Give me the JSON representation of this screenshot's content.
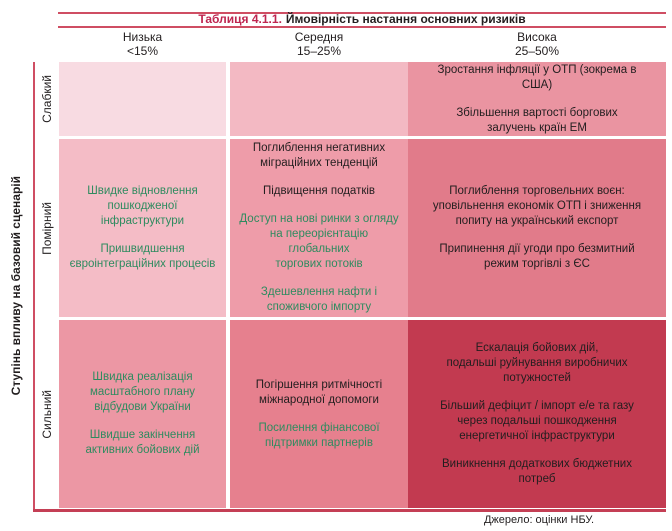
{
  "title": {
    "prefix": "Таблиця 4.1.1.",
    "main": "Ймовірність настання основних ризиків"
  },
  "probability_axis": {
    "columns": [
      {
        "label": "Низька",
        "range": "<15%"
      },
      {
        "label": "Середня",
        "range": "15–25%"
      },
      {
        "label": "Висока",
        "range": "25–50%"
      }
    ]
  },
  "impact_axis": {
    "title": "Ступінь впливу на базовий сценарій",
    "rows": [
      "Слабкий",
      "Помірний",
      "Сильний"
    ]
  },
  "matrix": {
    "rows": [
      {
        "cells": [
          {
            "bg": "#f8dbe2",
            "items": []
          },
          {
            "bg": "#f3b9c3",
            "items": []
          },
          {
            "bg": "#ea94a1",
            "items": [
              {
                "text": "Зростання інфляції у ОТП (зокрема в\nСША)",
                "tone": "negative"
              },
              {
                "text": "Збільшення вартості боргових\nзалучень країн ЕМ",
                "tone": "negative"
              }
            ]
          }
        ]
      },
      {
        "cells": [
          {
            "bg": "#f4bcc6",
            "items": [
              {
                "text": "Швидке відновлення\nпошкодженої\nінфраструктури",
                "tone": "positive"
              },
              {
                "text": "Пришвидшення\nєвроінтеграційних процесів",
                "tone": "positive"
              }
            ]
          },
          {
            "bg": "#ee9ca9",
            "items": [
              {
                "text": "Поглиблення негативних\nміграційних тенденцій",
                "tone": "negative"
              },
              {
                "text": "Підвищення податків",
                "tone": "negative"
              },
              {
                "text": "Доступ на нові ринки з огляду\nна переорієнтацію глобальних\nторгових потоків",
                "tone": "positive"
              },
              {
                "text": "Здешевлення нафти і\nспоживчого імпорту",
                "tone": "positive"
              }
            ]
          },
          {
            "bg": "#e17b8a",
            "items": [
              {
                "text": "Поглиблення торговельних воєн:\nуповільнення економік ОТП і зниження\nпопиту на український експорт",
                "tone": "negative"
              },
              {
                "text": "Припинення дії угоди про безмитний\nрежим торгівлі з ЄС",
                "tone": "negative"
              }
            ]
          }
        ]
      },
      {
        "cells": [
          {
            "bg": "#ec97a4",
            "items": [
              {
                "text": "Швидка реалізація\nмасштабного плану\nвідбудови України",
                "tone": "positive"
              },
              {
                "text": "Швидше закінчення\nактивних бойових дій",
                "tone": "positive"
              }
            ]
          },
          {
            "bg": "#e6808e",
            "items": [
              {
                "text": "Погіршення ритмічності\nміжнародної допомоги",
                "tone": "negative"
              },
              {
                "text": "Посилення фінансової\nпідтримки партнерів",
                "tone": "positive"
              }
            ]
          },
          {
            "bg": "#c23a50",
            "items": [
              {
                "text": "Ескалація бойових дій,\nподальші руйнування виробничих\nпотужностей",
                "tone": "negative"
              },
              {
                "text": "Більший дефіцит / імпорт е/е та газу\nчерез подальші пошкодження\nенергетичної інфраструктури",
                "tone": "negative"
              },
              {
                "text": "Виникнення додаткових бюджетних\nпотреб",
                "tone": "negative"
              }
            ]
          }
        ]
      }
    ]
  },
  "source": "Джерело: оцінки НБУ.",
  "colors": {
    "accent": "#be2650",
    "rule": "#cf4e63",
    "bottom_rule": "#c43f55",
    "positive_text": "#2e8b5f",
    "negative_text": "#221e1f"
  }
}
